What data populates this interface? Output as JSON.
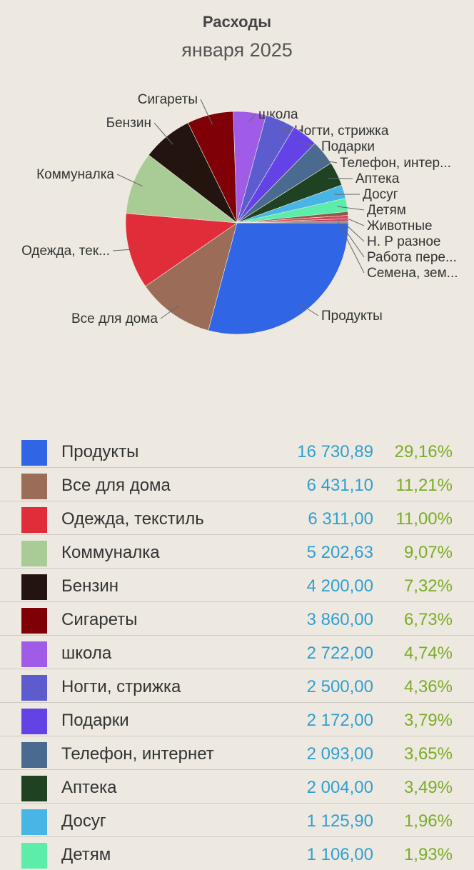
{
  "header": {
    "title": "Расходы",
    "subtitle": "января 2025"
  },
  "chart_data": {
    "type": "pie",
    "title": "Расходы",
    "subtitle": "января 2025",
    "slice_labels": [
      "Продукты",
      "Все для дома",
      "Одежда, тек...",
      "Коммуналка",
      "Бензин",
      "Сигареты",
      "школа",
      "Ногти, стрижка",
      "Подарки",
      "Телефон, интер...",
      "Аптека",
      "Досуг",
      "Детям",
      "Животные",
      "Н. Р разное",
      "Работа пере...",
      "Семена, зем..."
    ],
    "values": [
      16730.89,
      6431.1,
      6311.0,
      5202.63,
      4200.0,
      3860.0,
      2722.0,
      2500.0,
      2172.0,
      2093.0,
      2004.0,
      1125.9,
      1106.0,
      320,
      270,
      200,
      140
    ],
    "colors": [
      "#3066e6",
      "#9b6c57",
      "#e12d3a",
      "#a9cc96",
      "#241410",
      "#800008",
      "#a05ce6",
      "#5c5ccf",
      "#6443e6",
      "#4a6a8f",
      "#1f4223",
      "#47b5e6",
      "#5cedaa",
      "#8a5a4a",
      "#e04050",
      "#c0406a",
      "#7a7a7a"
    ]
  },
  "legend": {
    "rows": [
      {
        "name": "Продукты",
        "amount": "16 730,89",
        "percent": "29,16%",
        "color": "#3066e6"
      },
      {
        "name": "Все для дома",
        "amount": "6 431,10",
        "percent": "11,21%",
        "color": "#9b6c57"
      },
      {
        "name": "Одежда, текстиль",
        "amount": "6 311,00",
        "percent": "11,00%",
        "color": "#e12d3a"
      },
      {
        "name": "Коммуналка",
        "amount": "5 202,63",
        "percent": "9,07%",
        "color": "#a9cc96"
      },
      {
        "name": "Бензин",
        "amount": "4 200,00",
        "percent": "7,32%",
        "color": "#241410"
      },
      {
        "name": "Сигареты",
        "amount": "3 860,00",
        "percent": "6,73%",
        "color": "#800008"
      },
      {
        "name": "школа",
        "amount": "2 722,00",
        "percent": "4,74%",
        "color": "#a05ce6"
      },
      {
        "name": "Ногти, стрижка",
        "amount": "2 500,00",
        "percent": "4,36%",
        "color": "#5c5ccf"
      },
      {
        "name": "Подарки",
        "amount": "2 172,00",
        "percent": "3,79%",
        "color": "#6443e6"
      },
      {
        "name": "Телефон, интернет",
        "amount": "2 093,00",
        "percent": "3,65%",
        "color": "#4a6a8f"
      },
      {
        "name": "Аптека",
        "amount": "2 004,00",
        "percent": "3,49%",
        "color": "#1f4223"
      },
      {
        "name": "Досуг",
        "amount": "1 125,90",
        "percent": "1,96%",
        "color": "#47b5e6"
      },
      {
        "name": "Детям",
        "amount": "1 106,00",
        "percent": "1,93%",
        "color": "#5cedaa"
      }
    ]
  }
}
